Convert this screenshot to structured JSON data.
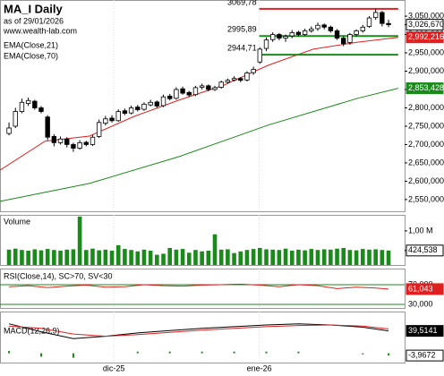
{
  "chart_data": {
    "type": "candlestick",
    "title": "MA_I Daily",
    "subtitle": "as of 29/01/2026",
    "source": "www.wealth-lab.com",
    "xlim": [
      -1.4,
      61.5
    ],
    "xticks": [
      {
        "value": 16.3,
        "label": "dic-25"
      },
      {
        "value": 38.9,
        "label": "ene-26"
      }
    ],
    "ylim": [
      2518,
      3094
    ],
    "yticks": [
      {
        "value": 3050,
        "label": "3,050,000"
      },
      {
        "value": 3000,
        "label": "3,000,000"
      },
      {
        "value": 2950,
        "label": "2,950,000"
      },
      {
        "value": 2900,
        "label": "2,900,000"
      },
      {
        "value": 2850,
        "label": "2,850,000"
      },
      {
        "value": 2800,
        "label": "2,800,000"
      },
      {
        "value": 2750,
        "label": "2,750,000"
      },
      {
        "value": 2700,
        "label": "2,700,000"
      },
      {
        "value": 2650,
        "label": "2,650,000"
      },
      {
        "value": 2600,
        "label": "2,600,000"
      },
      {
        "value": 2550,
        "label": "2,550,000"
      }
    ],
    "up_color": "#ffffff",
    "down_color": "#000000",
    "candles": [
      [
        2730,
        2760,
        2725,
        2745
      ],
      [
        2750,
        2800,
        2745,
        2790
      ],
      [
        2790,
        2825,
        2785,
        2815
      ],
      [
        2812,
        2828,
        2805,
        2820
      ],
      [
        2818,
        2822,
        2795,
        2800
      ],
      [
        2800,
        2805,
        2785,
        2790
      ],
      [
        2775,
        2780,
        2712,
        2720
      ],
      [
        2722,
        2728,
        2695,
        2705
      ],
      [
        2705,
        2722,
        2700,
        2715
      ],
      [
        2715,
        2720,
        2692,
        2700
      ],
      [
        2700,
        2705,
        2680,
        2690
      ],
      [
        2690,
        2712,
        2686,
        2705
      ],
      [
        2706,
        2710,
        2695,
        2700
      ],
      [
        2700,
        2726,
        2696,
        2720
      ],
      [
        2722,
        2768,
        2718,
        2760
      ],
      [
        2758,
        2778,
        2752,
        2770
      ],
      [
        2772,
        2780,
        2760,
        2765
      ],
      [
        2765,
        2796,
        2762,
        2790
      ],
      [
        2792,
        2798,
        2780,
        2785
      ],
      [
        2786,
        2806,
        2782,
        2800
      ],
      [
        2802,
        2808,
        2790,
        2795
      ],
      [
        2796,
        2815,
        2792,
        2810
      ],
      [
        2808,
        2822,
        2804,
        2815
      ],
      [
        2816,
        2820,
        2800,
        2805
      ],
      [
        2806,
        2836,
        2802,
        2830
      ],
      [
        2832,
        2838,
        2820,
        2825
      ],
      [
        2826,
        2856,
        2822,
        2850
      ],
      [
        2852,
        2858,
        2836,
        2840
      ],
      [
        2842,
        2846,
        2830,
        2835
      ],
      [
        2836,
        2860,
        2832,
        2855
      ],
      [
        2856,
        2866,
        2850,
        2860
      ],
      [
        2860,
        2864,
        2845,
        2850
      ],
      [
        2850,
        2860,
        2846,
        2855
      ],
      [
        2856,
        2874,
        2852,
        2870
      ],
      [
        2870,
        2880,
        2866,
        2875
      ],
      [
        2876,
        2886,
        2872,
        2880
      ],
      [
        2880,
        2884,
        2870,
        2875
      ],
      [
        2876,
        2900,
        2872,
        2895
      ],
      [
        2896,
        2912,
        2890,
        2905
      ],
      [
        2925,
        2965,
        2920,
        2960
      ],
      [
        2962,
        2992,
        2955,
        2985
      ],
      [
        2986,
        3006,
        2980,
        3000
      ],
      [
        3000,
        3004,
        2984,
        2990
      ],
      [
        2990,
        3000,
        2980,
        2995
      ],
      [
        2996,
        3012,
        2990,
        3005
      ],
      [
        3006,
        3010,
        2994,
        3000
      ],
      [
        3000,
        3016,
        2996,
        3010
      ],
      [
        3010,
        3022,
        3005,
        3015
      ],
      [
        3016,
        3032,
        3010,
        3025
      ],
      [
        3026,
        3030,
        3014,
        3020
      ],
      [
        3020,
        3024,
        3005,
        3010
      ],
      [
        3010,
        3015,
        2985,
        2990
      ],
      [
        2990,
        2996,
        2968,
        2975
      ],
      [
        2978,
        3004,
        2972,
        3000
      ],
      [
        3000,
        3014,
        2995,
        3010
      ],
      [
        3010,
        3026,
        3005,
        3020
      ],
      [
        3022,
        3050,
        3018,
        3045
      ],
      [
        3046,
        3070,
        3040,
        3060
      ],
      [
        3060,
        3064,
        3022,
        3030
      ],
      [
        3030,
        3040,
        3020,
        3026.67
      ]
    ],
    "last_price": {
      "value": 3026.67,
      "label": "3,026,670"
    },
    "lines": [
      {
        "name": "EMA(Close,21)",
        "color": "#e02020",
        "x": [
          -1.4,
          5.6,
          12.5,
          19.5,
          26.4,
          33.4,
          40.3,
          47.3,
          54.2,
          60.5
        ],
        "values": [
          2630,
          2709,
          2723,
          2777,
          2821,
          2862,
          2916,
          2960,
          2979,
          2992.216
        ],
        "last_label": "2,992,216"
      },
      {
        "name": "EMA(Close,70)",
        "color": "#1a8a1a",
        "x": [
          -1.4,
          12.5,
          26.4,
          40.3,
          54.2,
          60.5
        ],
        "values": [
          2545,
          2594,
          2667,
          2753,
          2826,
          2853.428
        ],
        "last_label": "2,853,428"
      }
    ],
    "hlines": [
      {
        "value": 3069.78,
        "label": "3069,78",
        "color": "#e02020",
        "x": [
          38.9,
          60.5
        ]
      },
      {
        "value": 2995.89,
        "label": "2995,89",
        "color": "#1a8a1a",
        "x": [
          38.9,
          60.5
        ]
      },
      {
        "value": 2944.71,
        "label": "2944,71",
        "color": "#1a8a1a",
        "x": [
          38.9,
          60.5
        ]
      }
    ],
    "volume": {
      "title": "Volume",
      "color": "#1a8a1a",
      "ylim": [
        0,
        1.47
      ],
      "yticks": [
        {
          "value": 1,
          "label": "1,00 M"
        }
      ],
      "values": [
        0.45,
        0.48,
        0.44,
        0.42,
        0.46,
        0.43,
        0.47,
        0.44,
        0.42,
        0.45,
        0.46,
        1.42,
        0.44,
        0.48,
        0.43,
        0.45,
        0.42,
        0.58,
        0.47,
        0.44,
        0.4,
        0.45,
        0.42,
        0.3,
        0.33,
        0.5,
        0.45,
        0.47,
        0.36,
        0.44,
        0.4,
        0.42,
        0.9,
        0.45,
        0.46,
        0.35,
        0.4,
        0.44,
        0.47,
        0.5,
        0.46,
        0.45,
        0.44,
        0.48,
        0.42,
        0.45,
        0.43,
        0.47,
        0.44,
        0.46,
        0.45,
        0.48,
        0.5,
        0.44,
        0.43,
        0.47,
        0.45,
        0.46,
        0.44,
        0.424538
      ],
      "last_value": {
        "value": 0.424538,
        "label": "424,538"
      }
    },
    "rsi": {
      "title": "RSI(Close,14), SC>70, SV<30",
      "color": "#e02020",
      "level_color": "#1a8a1a",
      "ylim": [
        22.7,
        102.7
      ],
      "levels": [
        {
          "value": 70,
          "label": "70,000"
        },
        {
          "value": 30,
          "label": "30,000"
        }
      ],
      "x": [
        0,
        3,
        6,
        9,
        12,
        15,
        18,
        21,
        24,
        27,
        30,
        33,
        36,
        39,
        42,
        45,
        48,
        51,
        54,
        57,
        59
      ],
      "values": [
        66,
        68,
        64,
        67,
        69,
        65,
        66,
        70,
        68,
        67,
        69,
        70,
        71,
        69,
        66,
        70,
        68,
        62,
        65,
        63,
        61.043
      ],
      "last_label": "61,043"
    },
    "macd": {
      "title": "MACD(12,26,9)",
      "ylim": [
        -16.4,
        73.7
      ],
      "x": [
        0,
        5,
        10,
        15,
        20,
        25,
        30,
        35,
        40,
        45,
        50,
        55,
        59
      ],
      "series": [
        {
          "name": "MACD",
          "color": "#000000",
          "values": [
            52,
            38,
            26,
            30,
            36,
            40,
            44,
            47,
            50,
            52,
            50,
            46,
            39.5141
          ],
          "last_label": "39,5141"
        },
        {
          "name": "Signal",
          "color": "#e02020",
          "values": [
            48,
            44,
            34,
            30,
            33,
            37,
            41,
            44,
            47,
            49,
            50,
            48,
            43
          ]
        }
      ],
      "histogram": {
        "color": "#1a8a1a",
        "values": [
          4,
          -6,
          -8,
          0,
          3,
          3,
          3,
          3,
          3,
          3,
          0,
          -2,
          -3.9672
        ],
        "last_label": "-3,9672"
      }
    }
  }
}
